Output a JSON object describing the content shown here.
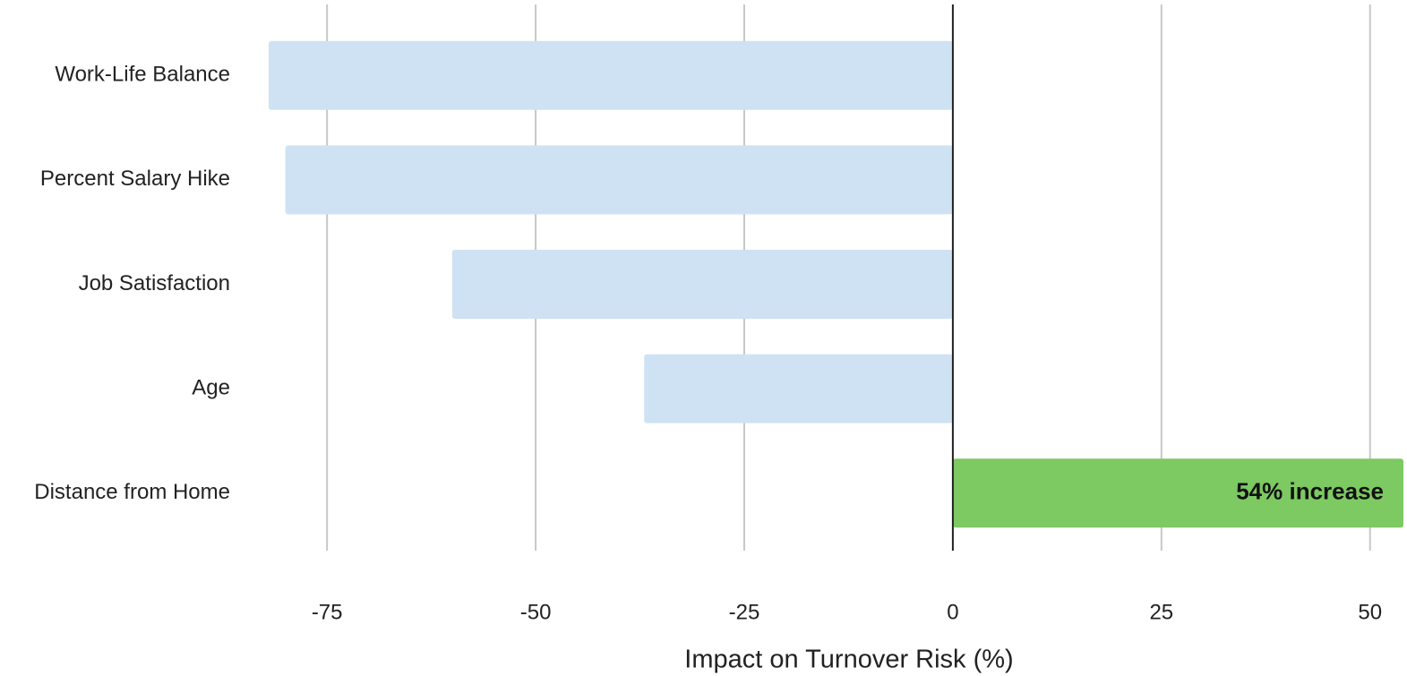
{
  "chart_data": {
    "type": "bar",
    "orientation": "horizontal",
    "categories": [
      "Work-Life Balance",
      "Percent Salary Hike",
      "Job Satisfaction",
      "Age",
      "Distance from Home"
    ],
    "values": [
      -82,
      -80,
      -60,
      -37,
      54
    ],
    "value_labels": [
      null,
      null,
      null,
      null,
      "54% increase"
    ],
    "colors": [
      "#cfe2f3",
      "#cfe2f3",
      "#cfe2f3",
      "#cfe2f3",
      "#7dc962"
    ],
    "xlabel": "Impact on Turnover Risk (%)",
    "xlim": [
      -85,
      54
    ],
    "xticks": [
      -75,
      -50,
      -25,
      0,
      25,
      50
    ],
    "grid": true
  }
}
